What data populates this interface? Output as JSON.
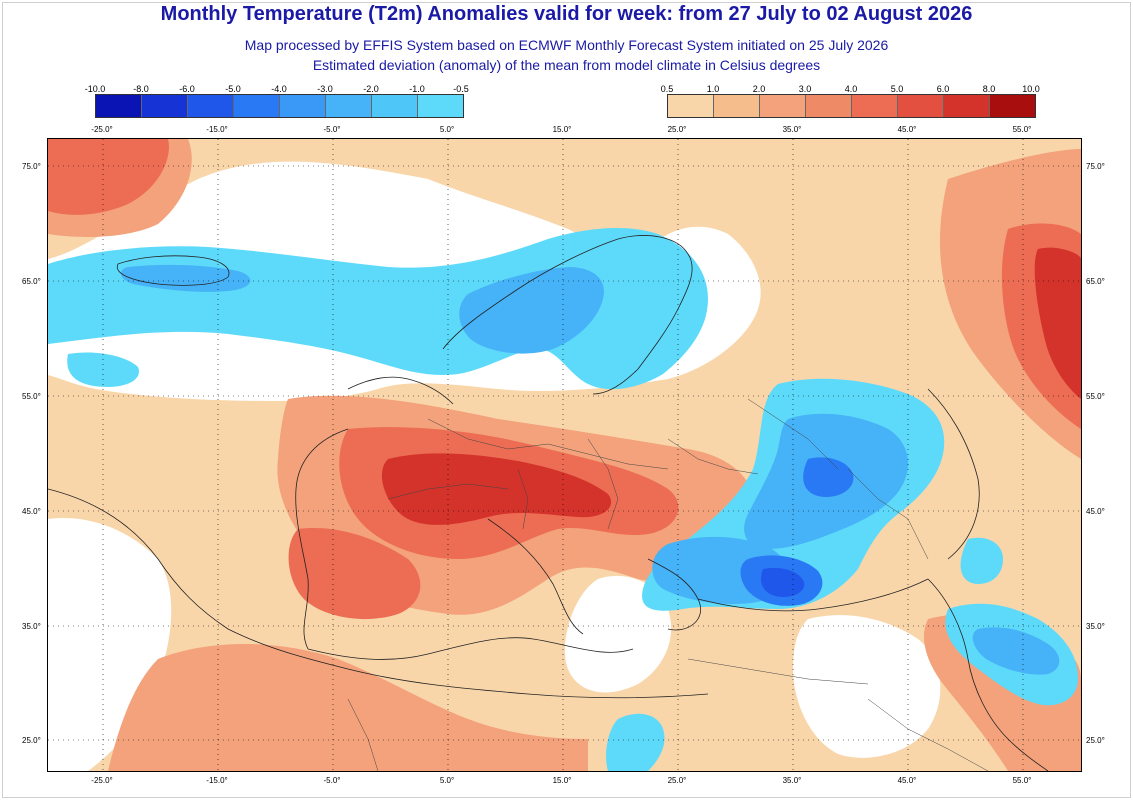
{
  "header": {
    "title": "Monthly Temperature (T2m) Anomalies valid for week: from 27 July to 02 August 2026",
    "subtitle1": "Map processed by EFFIS System based on ECMWF Monthly Forecast System initiated on 25 July 2026",
    "subtitle2": "Estimated deviation (anomaly) of the mean from model climate in Celsius degrees"
  },
  "legend_cold": {
    "labels": [
      "-10.0",
      "-8.0",
      "-6.0",
      "-5.0",
      "-4.0",
      "-3.0",
      "-2.0",
      "-1.0",
      "-0.5"
    ],
    "colors": [
      "#0a14b4",
      "#1634d6",
      "#1f57ea",
      "#2a79f4",
      "#3a98f6",
      "#46b2f7",
      "#4ec7f8",
      "#5ddafa"
    ]
  },
  "legend_warm": {
    "labels": [
      "0.5",
      "1.0",
      "2.0",
      "3.0",
      "4.0",
      "5.0",
      "6.0",
      "8.0",
      "10.0"
    ],
    "colors": [
      "#f9d6aa",
      "#f6bd8c",
      "#f3a27b",
      "#ef8a67",
      "#ec6d53",
      "#e4503f",
      "#d4332b",
      "#a80e0e"
    ]
  },
  "axes": {
    "lon_top": [
      "-25.0°",
      "-15.0°",
      "-5.0°",
      "5.0°",
      "15.0°",
      "25.0°",
      "35.0°",
      "45.0°",
      "55.0°"
    ],
    "lon_bottom": [
      "-25.0°",
      "-15.0°",
      "-5.0°",
      "5.0°",
      "15.0°",
      "25.0°",
      "35.0°",
      "45.0°",
      "55.0°"
    ],
    "lat_left": [
      "75.0°",
      "65.0°",
      "55.0°",
      "45.0°",
      "35.0°",
      "25.0°"
    ],
    "lat_right": [
      "75.0°",
      "65.0°",
      "55.0°",
      "45.0°",
      "35.0°",
      "25.0°"
    ]
  }
}
